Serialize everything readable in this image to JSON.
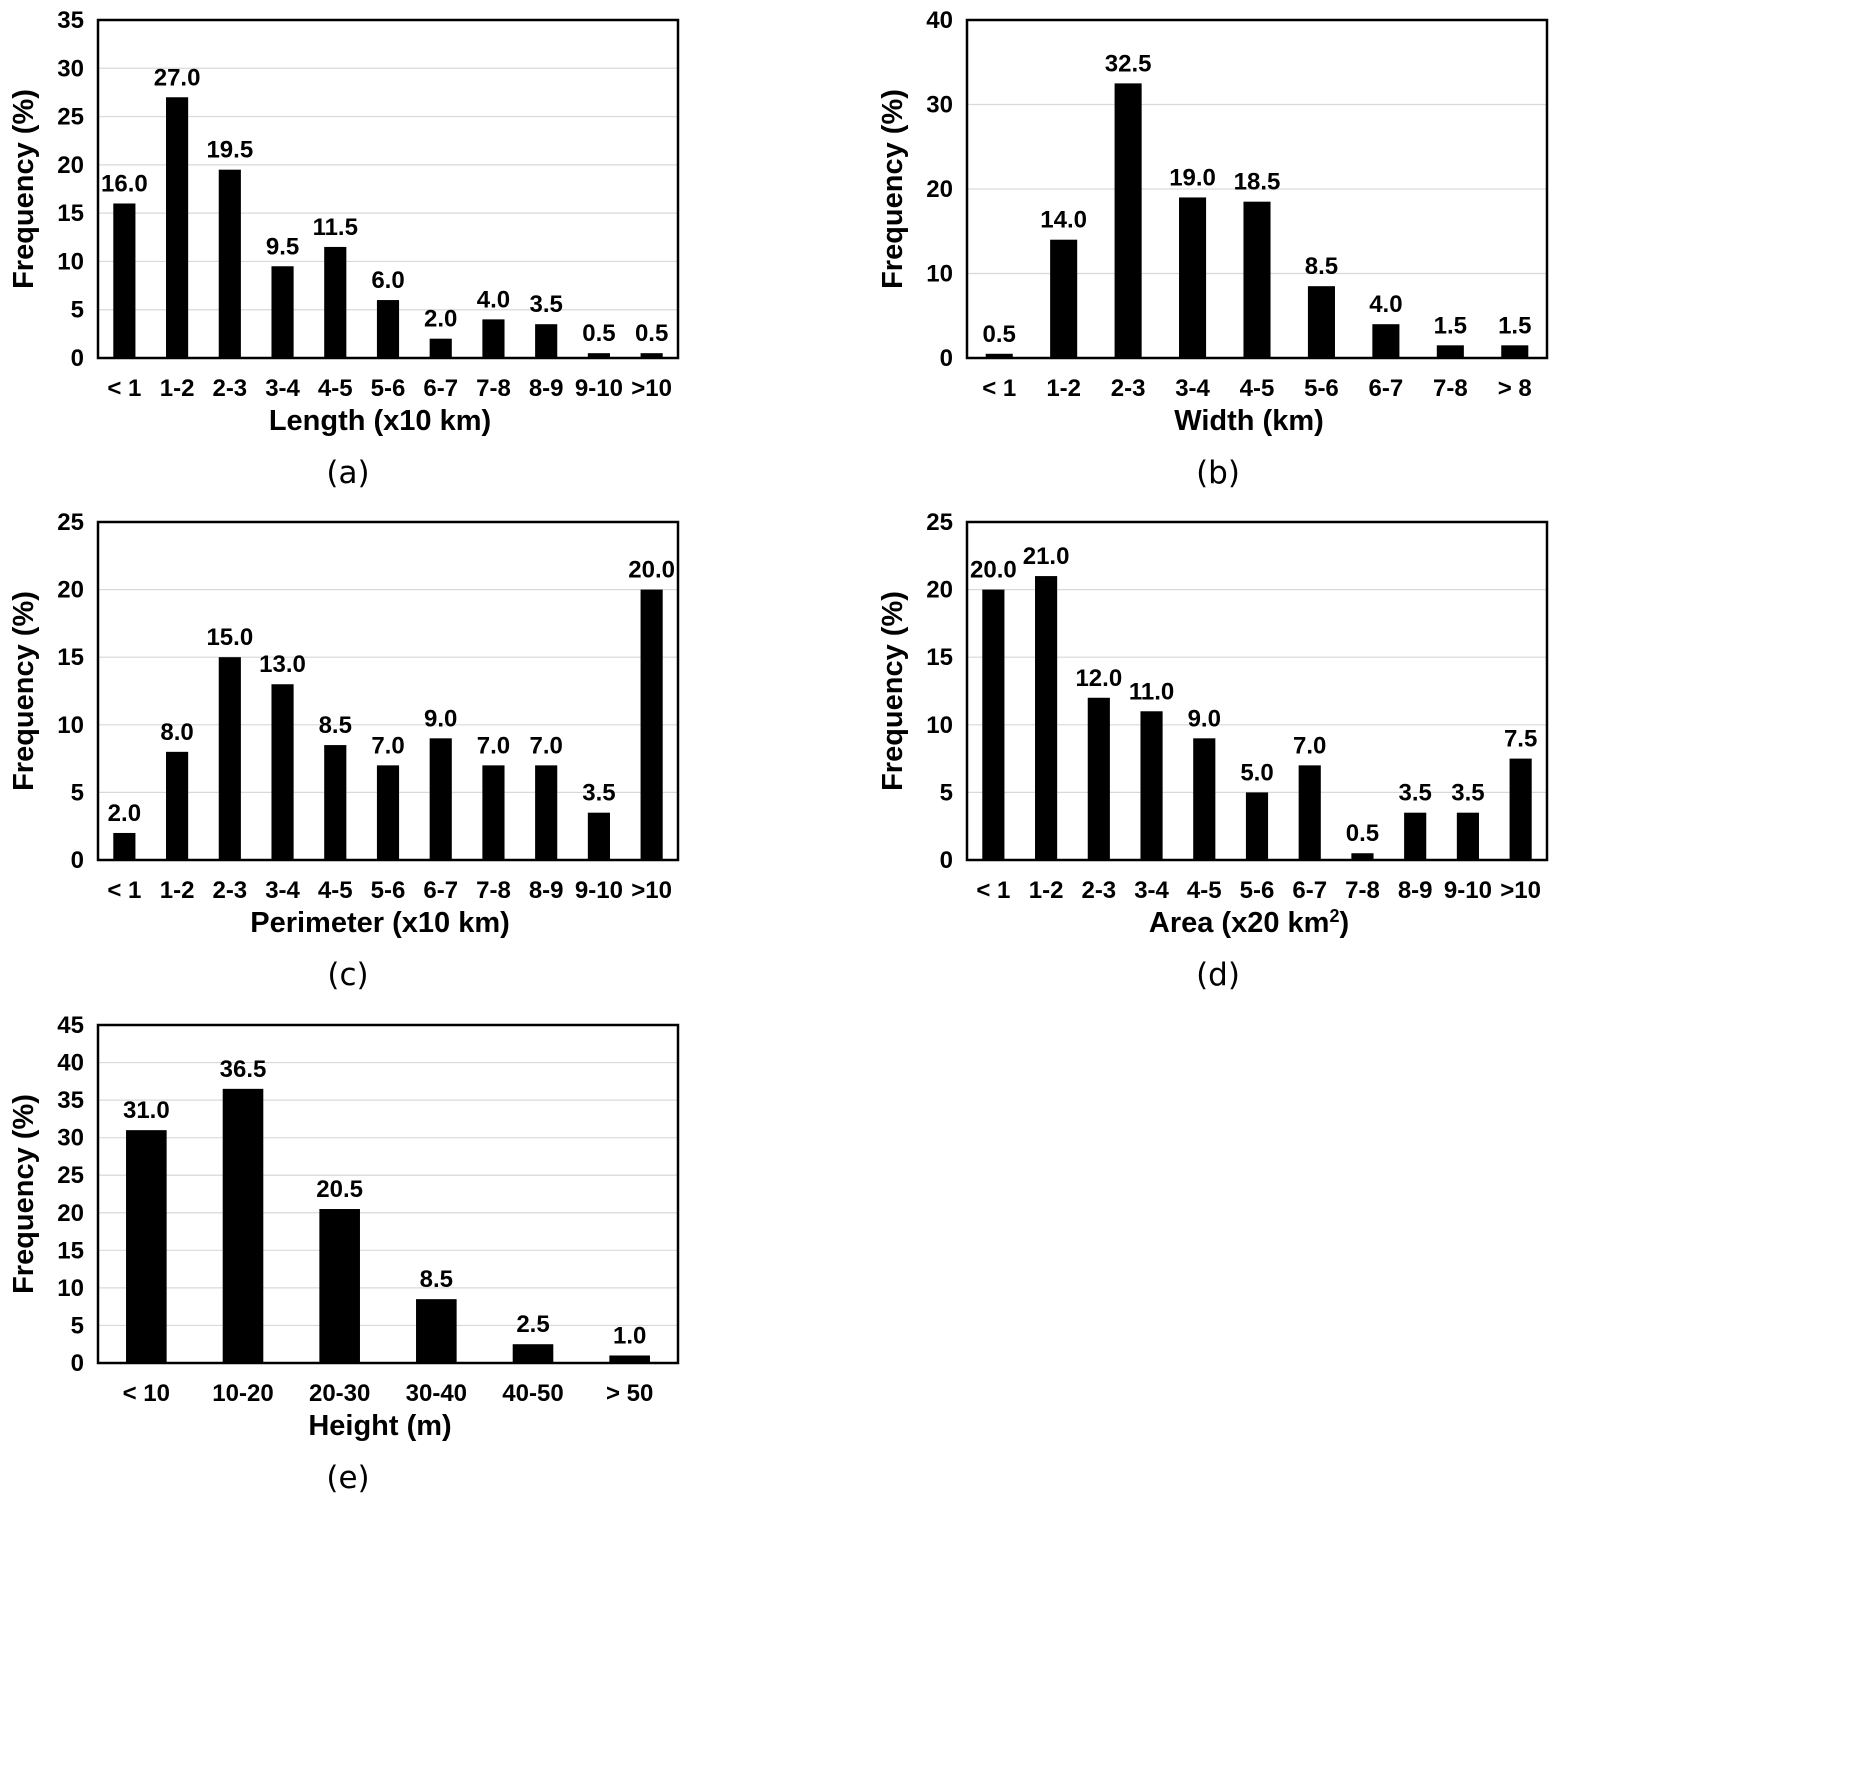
{
  "chart_data": [
    {
      "type": "bar",
      "panel_label": "(a)",
      "xlabel": "Length (x10 km)",
      "xlabel_sup": "",
      "ylabel": "Frequency (%)",
      "ylim": [
        0,
        35
      ],
      "ytick_step": 5,
      "yticks": [
        "0",
        "5",
        "10",
        "15",
        "20",
        "25",
        "30",
        "35"
      ],
      "grid": true,
      "categories": [
        "< 1",
        "1-2",
        "2-3",
        "3-4",
        "4-5",
        "5-6",
        "6-7",
        "7-8",
        "8-9",
        "9-10",
        ">10"
      ],
      "values": [
        16.0,
        27.0,
        19.5,
        9.5,
        11.5,
        6.0,
        2.0,
        4.0,
        3.5,
        0.5,
        0.5
      ],
      "value_labels": [
        "16.0",
        "27.0",
        "19.5",
        "9.5",
        "11.5",
        "6.0",
        "2.0",
        "4.0",
        "3.5",
        "0.5",
        "0.5"
      ]
    },
    {
      "type": "bar",
      "panel_label": "(b)",
      "xlabel": "Width (km)",
      "xlabel_sup": "",
      "ylabel": "Frequency (%)",
      "ylim": [
        0,
        40
      ],
      "ytick_step": 10,
      "yticks": [
        "0",
        "10",
        "20",
        "30",
        "40"
      ],
      "grid": true,
      "categories": [
        "< 1",
        "1-2",
        "2-3",
        "3-4",
        "4-5",
        "5-6",
        "6-7",
        "7-8",
        "> 8"
      ],
      "values": [
        0.5,
        14.0,
        32.5,
        19.0,
        18.5,
        8.5,
        4.0,
        1.5,
        1.5
      ],
      "value_labels": [
        "0.5",
        "14.0",
        "32.5",
        "19.0",
        "18.5",
        "8.5",
        "4.0",
        "1.5",
        "1.5"
      ]
    },
    {
      "type": "bar",
      "panel_label": "(c)",
      "xlabel": "Perimeter (x10 km)",
      "xlabel_sup": "",
      "ylabel": "Frequency (%)",
      "ylim": [
        0,
        25
      ],
      "ytick_step": 5,
      "yticks": [
        "0",
        "5",
        "10",
        "15",
        "20",
        "25"
      ],
      "grid": true,
      "categories": [
        "< 1",
        "1-2",
        "2-3",
        "3-4",
        "4-5",
        "5-6",
        "6-7",
        "7-8",
        "8-9",
        "9-10",
        ">10"
      ],
      "values": [
        2.0,
        8.0,
        15.0,
        13.0,
        8.5,
        7.0,
        9.0,
        7.0,
        7.0,
        3.5,
        20.0
      ],
      "value_labels": [
        "2.0",
        "8.0",
        "15.0",
        "13.0",
        "8.5",
        "7.0",
        "9.0",
        "7.0",
        "7.0",
        "3.5",
        "20.0"
      ]
    },
    {
      "type": "bar",
      "panel_label": "(d)",
      "xlabel": "Area (x20 km",
      "xlabel_sup": "2",
      "xlabel_end": ")",
      "ylabel": "Frequency (%)",
      "ylim": [
        0,
        25
      ],
      "ytick_step": 5,
      "yticks": [
        "0",
        "5",
        "10",
        "15",
        "20",
        "25"
      ],
      "grid": true,
      "categories": [
        "< 1",
        "1-2",
        "2-3",
        "3-4",
        "4-5",
        "5-6",
        "6-7",
        "7-8",
        "8-9",
        "9-10",
        ">10"
      ],
      "values": [
        20.0,
        21.0,
        12.0,
        11.0,
        9.0,
        5.0,
        7.0,
        0.5,
        3.5,
        3.5,
        7.5
      ],
      "value_labels": [
        "20.0",
        "21.0",
        "12.0",
        "11.0",
        "9.0",
        "5.0",
        "7.0",
        "0.5",
        "3.5",
        "3.5",
        "7.5"
      ]
    },
    {
      "type": "bar",
      "panel_label": "(e)",
      "xlabel": "Height (m)",
      "xlabel_sup": "",
      "ylabel": "Frequency (%)",
      "ylim": [
        0,
        45
      ],
      "ytick_step": 5,
      "yticks": [
        "0",
        "5",
        "10",
        "15",
        "20",
        "25",
        "30",
        "35",
        "40",
        "45"
      ],
      "grid": true,
      "categories": [
        "< 10",
        "10-20",
        "20-30",
        "30-40",
        "40-50",
        "> 50"
      ],
      "values": [
        31.0,
        36.5,
        20.5,
        8.5,
        2.5,
        1.0
      ],
      "value_labels": [
        "31.0",
        "36.5",
        "20.5",
        "8.5",
        "2.5",
        "1.0"
      ]
    }
  ]
}
